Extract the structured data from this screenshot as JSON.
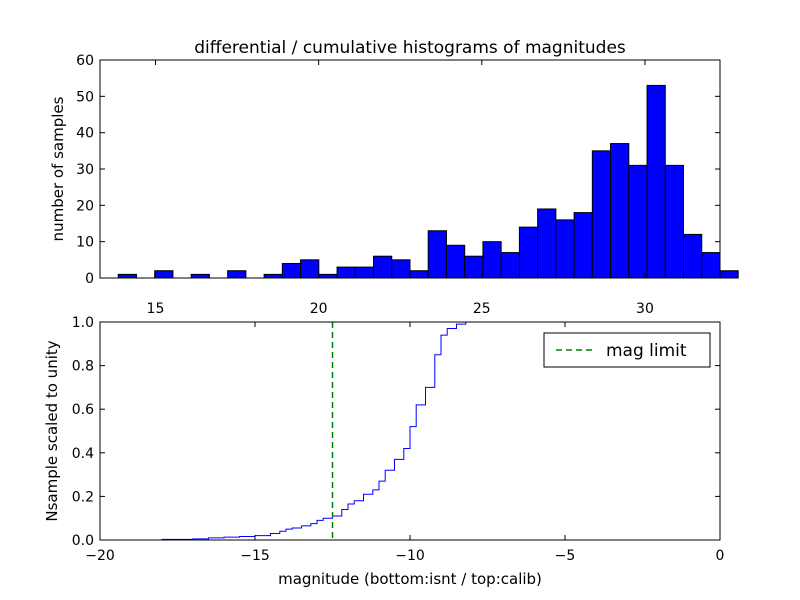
{
  "chart_data": [
    {
      "type": "bar",
      "title": "differential / cumulative histograms of magnitudes",
      "xlabel": "",
      "ylabel": "number of samples",
      "xlim": [
        13.3,
        32.3
      ],
      "ylim": [
        0,
        60
      ],
      "xticks": [
        15,
        20,
        25,
        30
      ],
      "yticks": [
        0,
        10,
        20,
        30,
        40,
        50,
        60
      ],
      "x_axis_position": "top",
      "grid": false,
      "color": "#0000ff",
      "bin_start": 13.3,
      "bin_width": 0.5588,
      "values": [
        0,
        1,
        0,
        2,
        0,
        1,
        0,
        2,
        0,
        1,
        4,
        5,
        1,
        3,
        3,
        6,
        5,
        2,
        13,
        9,
        6,
        10,
        7,
        14,
        19,
        16,
        18,
        35,
        37,
        31,
        53,
        31,
        12,
        7,
        2
      ]
    },
    {
      "type": "line",
      "drawstyle": "steps",
      "xlabel": "magnitude (bottom:isnt / top:calib)",
      "ylabel": "Nsample scaled to unity",
      "xlim": [
        -20,
        0
      ],
      "ylim": [
        0,
        1.0
      ],
      "xticks": [
        -20,
        -15,
        -10,
        -5,
        0
      ],
      "yticks": [
        0.0,
        0.2,
        0.4,
        0.6,
        0.8,
        1.0
      ],
      "xticklabels": [
        "−20",
        "−15",
        "−10",
        "−5",
        "0"
      ],
      "yticklabels": [
        "0.0",
        "0.2",
        "0.4",
        "0.6",
        "0.8",
        "1.0"
      ],
      "grid": false,
      "series": [
        {
          "color": "#0000ff",
          "x": [
            -19.0,
            -18.0,
            -17.0,
            -16.5,
            -16.0,
            -15.5,
            -15.0,
            -14.5,
            -14.2,
            -14.0,
            -13.8,
            -13.5,
            -13.2,
            -13.0,
            -12.8,
            -12.5,
            -12.2,
            -12.0,
            -11.8,
            -11.5,
            -11.2,
            -11.0,
            -10.8,
            -10.5,
            -10.2,
            -10.0,
            -9.8,
            -9.5,
            -9.2,
            -9.0,
            -8.8,
            -8.5,
            -8.2
          ],
          "y": [
            0.0,
            0.003,
            0.005,
            0.01,
            0.013,
            0.016,
            0.02,
            0.03,
            0.04,
            0.05,
            0.055,
            0.065,
            0.075,
            0.09,
            0.1,
            0.11,
            0.14,
            0.165,
            0.18,
            0.21,
            0.23,
            0.27,
            0.32,
            0.37,
            0.42,
            0.52,
            0.62,
            0.7,
            0.85,
            0.94,
            0.97,
            0.99,
            1.0
          ]
        }
      ],
      "vline": {
        "x": -12.5,
        "color": "#008000",
        "style": "dashed",
        "label": "mag limit"
      },
      "legend": {
        "placement": "top-right",
        "entries": [
          "mag limit"
        ]
      }
    }
  ]
}
